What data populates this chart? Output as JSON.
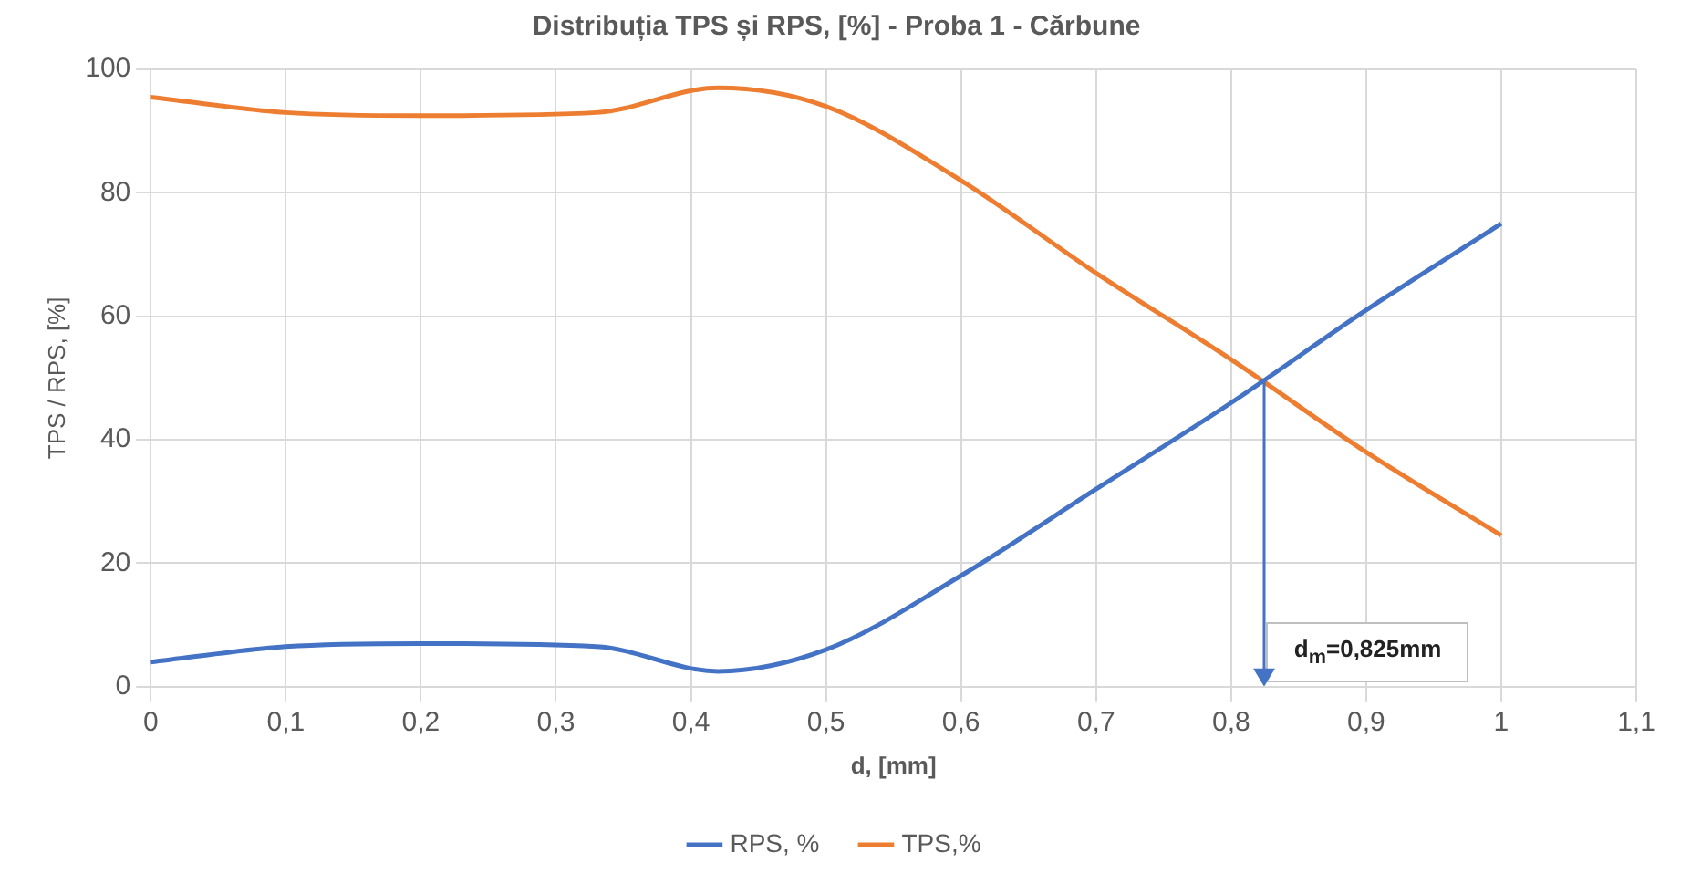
{
  "chart_data": {
    "type": "line",
    "title": "Distribuția TPS și RPS, [%] - Proba 1 - Cărbune",
    "xlabel": "d, [mm]",
    "ylabel": "TPS / RPS, [%]",
    "xlim": [
      0,
      1.1
    ],
    "xticks": [
      {
        "value": 0,
        "label": "0"
      },
      {
        "value": 0.1,
        "label": "0,1"
      },
      {
        "value": 0.2,
        "label": "0,2"
      },
      {
        "value": 0.3,
        "label": "0,3"
      },
      {
        "value": 0.4,
        "label": "0,4"
      },
      {
        "value": 0.5,
        "label": "0,5"
      },
      {
        "value": 0.6,
        "label": "0,6"
      },
      {
        "value": 0.7,
        "label": "0,7"
      },
      {
        "value": 0.8,
        "label": "0,8"
      },
      {
        "value": 0.9,
        "label": "0,9"
      },
      {
        "value": 1,
        "label": "1"
      },
      {
        "value": 1.1,
        "label": "1,1"
      }
    ],
    "ylim": [
      0,
      100
    ],
    "yticks": [
      0,
      20,
      40,
      60,
      80,
      100
    ],
    "x": [
      0,
      0.1,
      0.2,
      0.33,
      0.42,
      0.5,
      0.6,
      0.7,
      0.8,
      0.9,
      1
    ],
    "series": [
      {
        "name": "RPS, %",
        "color": "#4472c4",
        "values": [
          4,
          6.5,
          7,
          6.5,
          2.5,
          6,
          18,
          32,
          46,
          61,
          75
        ]
      },
      {
        "name": "TPS,%",
        "color": "#ed7d31",
        "values": [
          95.5,
          93,
          92.5,
          93,
          97,
          94,
          82,
          67,
          53,
          38,
          24.5
        ]
      }
    ],
    "ref_lines": [
      {
        "axis": "x",
        "value": 0.825,
        "label": "d$_{m}$=0,825mm",
        "color": "#4472c4"
      }
    ],
    "grid": true,
    "legend": "bottom",
    "marker": "none",
    "line_style": "solid"
  }
}
